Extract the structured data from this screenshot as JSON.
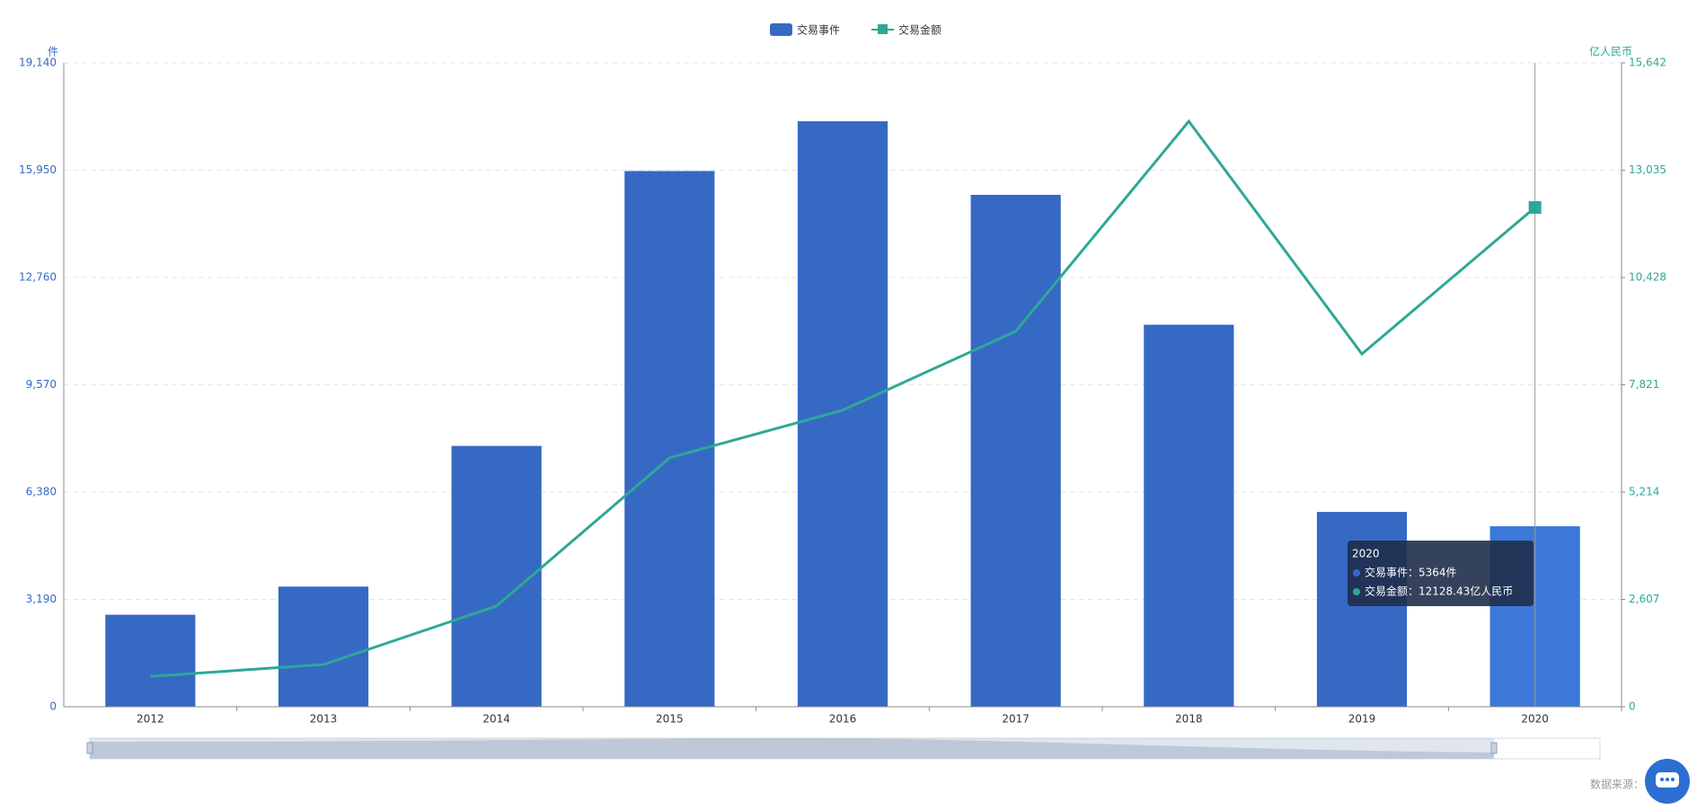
{
  "chart_data": {
    "type": "bar-line",
    "categories": [
      "2012",
      "2013",
      "2014",
      "2015",
      "2016",
      "2017",
      "2018",
      "2019",
      "2020"
    ],
    "series": [
      {
        "name": "交易事件",
        "type": "bar",
        "color": "#3669c4",
        "values": [
          2734,
          3571,
          7753,
          15924,
          17403,
          15216,
          11356,
          5790,
          5364
        ]
      },
      {
        "name": "交易金额",
        "type": "line",
        "axis": "y2",
        "color": "#2ea896",
        "values": [
          736,
          1025,
          2445,
          6047,
          7203,
          9122,
          14222,
          8570,
          12128.43
        ]
      }
    ],
    "y_label": "件",
    "y2_label": "亿人民币",
    "ylim": [
      0,
      19140
    ],
    "yticks": [
      0,
      {
        "value": 3190,
        "label": "3,190"
      },
      {
        "value": 6380,
        "label": "6,380"
      },
      {
        "value": 9570,
        "label": "9,570"
      },
      {
        "value": 12760,
        "label": "12,760"
      },
      {
        "value": 15950,
        "label": "15,950"
      },
      {
        "value": 19140,
        "label": "19,140"
      }
    ],
    "y2lim": [
      0,
      15642
    ],
    "y2ticks": [
      0,
      {
        "value": 2607,
        "label": "2,607"
      },
      {
        "value": 5214,
        "label": "5,214"
      },
      {
        "value": 7821,
        "label": "7,821"
      },
      {
        "value": 10428,
        "label": "10,428"
      },
      {
        "value": 13035,
        "label": "13,035"
      },
      {
        "value": 15642,
        "label": "15,642"
      }
    ],
    "grid": true,
    "legend": "top",
    "tooltip": {
      "title": "2020",
      "lines": [
        "交易事件：5364件",
        "交易金额：12128.43亿人民币"
      ]
    },
    "source": "数据来源："
  }
}
